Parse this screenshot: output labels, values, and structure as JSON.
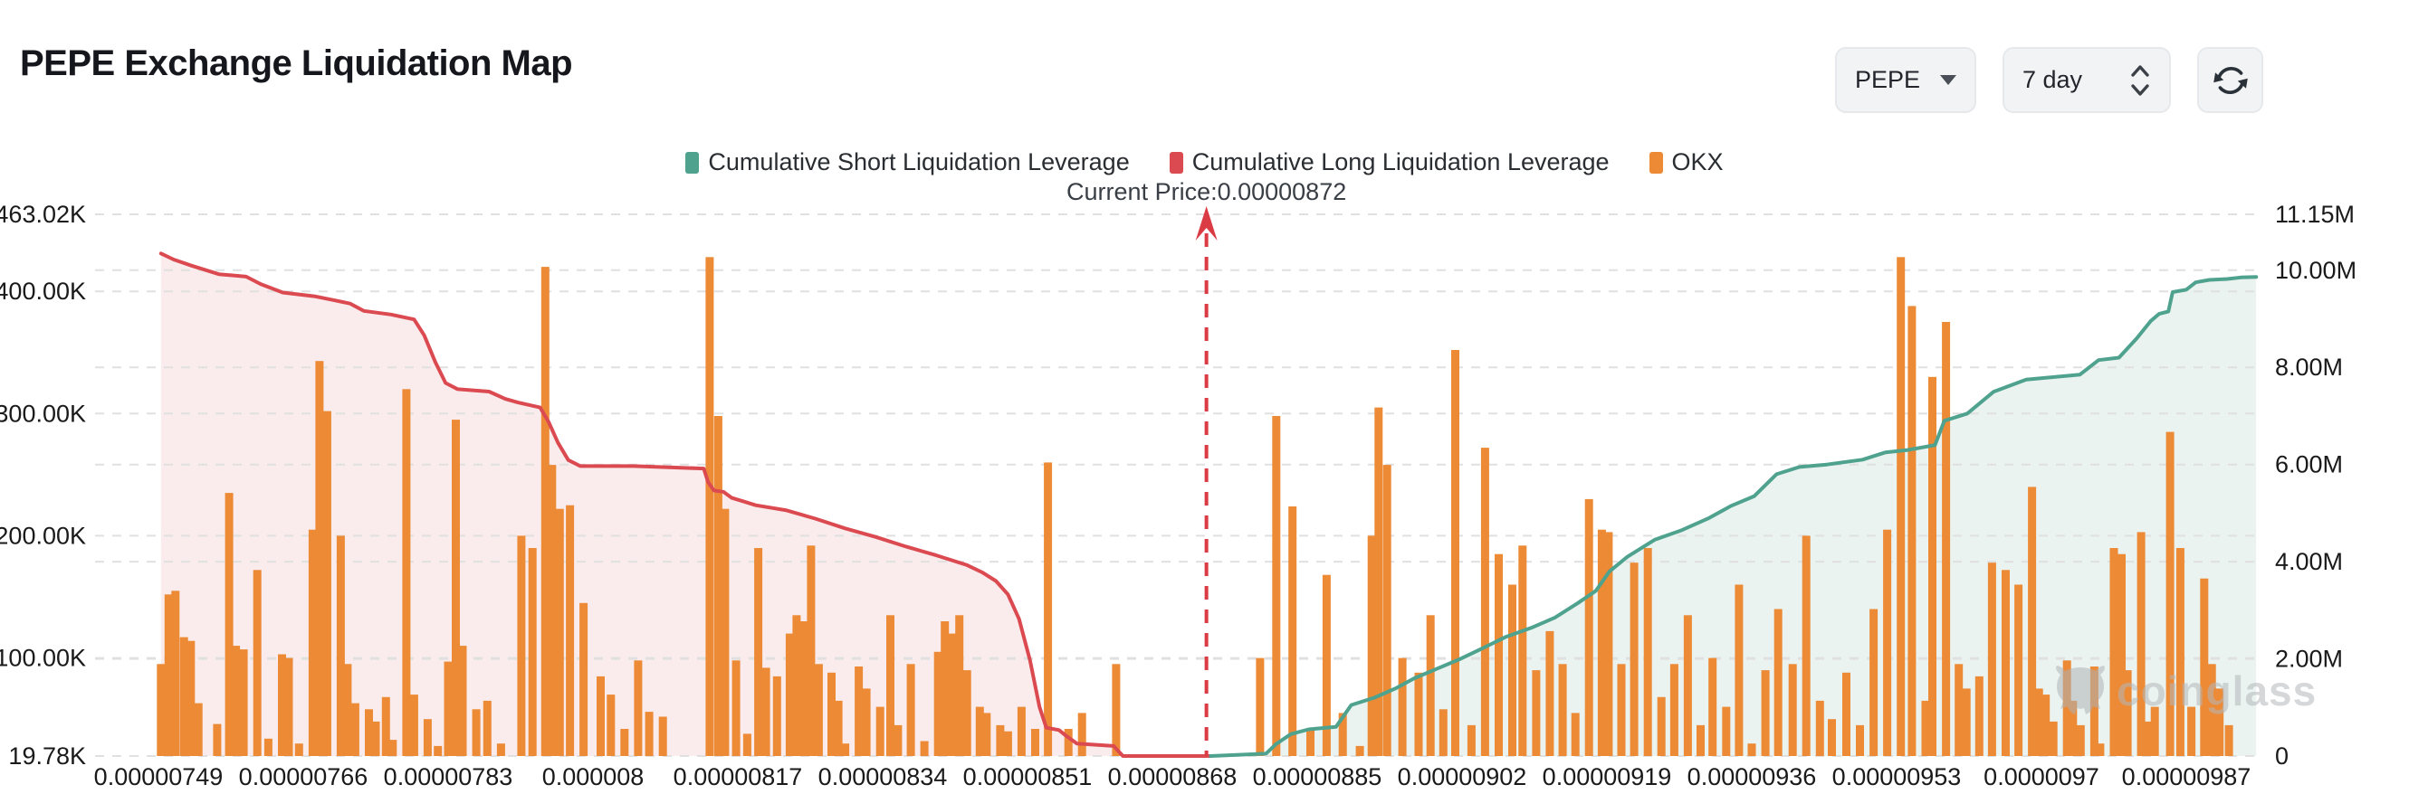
{
  "header": {
    "title": "PEPE Exchange Liquidation Map",
    "coin_label": "PEPE",
    "timeframe_label": "7 day"
  },
  "legend": {
    "items": [
      {
        "label": "Cumulative Short Liquidation Leverage",
        "color": "#4EA28E"
      },
      {
        "label": "Cumulative Long Liquidation Leverage",
        "color": "#DB4A50"
      },
      {
        "label": "OKX",
        "color": "#EC8A35"
      }
    ]
  },
  "watermark": {
    "text": "coinglass"
  },
  "chart_data": {
    "type": "bar",
    "subtype": "liquidation-map: OKX bars (left axis) + cumulative long/short lines (right-area rendering)",
    "title": "PEPE Exchange Liquidation Map",
    "current_price_label": "Current Price:0.00000872",
    "current_price_e8": 872,
    "price_unit": "1e-8 USD (value 749 means 0.00000749)",
    "grid": "dashed horizontal gridlines for both axes",
    "legend_position": "top-center",
    "left_axis": {
      "labels": [
        "463.02K",
        "400.00K",
        "300.00K",
        "200.00K",
        "100.00K",
        "19.78K"
      ],
      "values_k": [
        463.02,
        400,
        300,
        200,
        100,
        19.78
      ],
      "min_k": 19.78,
      "max_k": 463.02
    },
    "right_axis": {
      "labels": [
        "11.15M",
        "10.00M",
        "8.00M",
        "6.00M",
        "4.00M",
        "2.00M",
        "0"
      ],
      "values_m": [
        11.15,
        10,
        8,
        6,
        4,
        2,
        0
      ],
      "min_m": 0,
      "max_m": 11.15
    },
    "x_axis": {
      "tick_labels": [
        "0.00000749",
        "0.00000766",
        "0.00000783",
        "0.000008",
        "0.00000817",
        "0.00000834",
        "0.00000851",
        "0.00000868",
        "0.00000885",
        "0.00000902",
        "0.00000919",
        "0.00000936",
        "0.00000953",
        "0.0000097",
        "0.00000987"
      ],
      "tick_prices_e8": [
        749,
        766,
        783,
        800,
        817,
        834,
        851,
        868,
        885,
        902,
        919,
        936,
        953,
        970,
        987
      ]
    },
    "series": {
      "short_line": {
        "name": "Cumulative Short Liquidation Leverage",
        "color": "#4EA28E",
        "fill": "#EAF3F0",
        "axis": "right",
        "points_price_m": [
          [
            872.5,
            0
          ],
          [
            879,
            0.05
          ],
          [
            880.2,
            0.25
          ],
          [
            881.9,
            0.45
          ],
          [
            884,
            0.55
          ],
          [
            887.2,
            0.6
          ],
          [
            889,
            1.05
          ],
          [
            891.7,
            1.2
          ],
          [
            894.3,
            1.4
          ],
          [
            896.4,
            1.6
          ],
          [
            899.1,
            1.8
          ],
          [
            901.8,
            2
          ],
          [
            904.2,
            2.2
          ],
          [
            907.1,
            2.45
          ],
          [
            910.3,
            2.65
          ],
          [
            912.9,
            2.85
          ],
          [
            915.6,
            3.15
          ],
          [
            917.7,
            3.4
          ],
          [
            919.3,
            3.8
          ],
          [
            921.4,
            4.1
          ],
          [
            924.6,
            4.45
          ],
          [
            927.8,
            4.65
          ],
          [
            931,
            4.9
          ],
          [
            933.6,
            5.15
          ],
          [
            936.3,
            5.35
          ],
          [
            938.9,
            5.8
          ],
          [
            941.6,
            5.95
          ],
          [
            944.8,
            6
          ],
          [
            949,
            6.1
          ],
          [
            951.7,
            6.25
          ],
          [
            954.3,
            6.3
          ],
          [
            957.5,
            6.4
          ],
          [
            958.6,
            6.9
          ],
          [
            961.3,
            7.05
          ],
          [
            964.4,
            7.5
          ],
          [
            968.2,
            7.75
          ],
          [
            974.5,
            7.85
          ],
          [
            976.7,
            8.15
          ],
          [
            979.1,
            8.2
          ],
          [
            981.2,
            8.6
          ],
          [
            982.8,
            8.95
          ],
          [
            983.8,
            9.1
          ],
          [
            984.9,
            9.15
          ],
          [
            985.4,
            9.55
          ],
          [
            987,
            9.6
          ],
          [
            988.1,
            9.75
          ],
          [
            989.7,
            9.8
          ],
          [
            991.8,
            9.82
          ],
          [
            993.4,
            9.85
          ],
          [
            995.2,
            9.86
          ]
        ]
      },
      "long_line": {
        "name": "Cumulative Long Liquidation Leverage",
        "color": "#DB4A50",
        "fill": "#FAECEC",
        "axis": "left",
        "points_price_k": [
          [
            749.3,
            431
          ],
          [
            750.8,
            426
          ],
          [
            752.9,
            421
          ],
          [
            756.1,
            414
          ],
          [
            759.3,
            412
          ],
          [
            761,
            406
          ],
          [
            763.6,
            399
          ],
          [
            767.3,
            396
          ],
          [
            769.4,
            393
          ],
          [
            771.5,
            390
          ],
          [
            773.1,
            384
          ],
          [
            776.3,
            381
          ],
          [
            779,
            377
          ],
          [
            780.2,
            364
          ],
          [
            781.5,
            342
          ],
          [
            782.7,
            325
          ],
          [
            784.1,
            320
          ],
          [
            787.8,
            318
          ],
          [
            789.7,
            312
          ],
          [
            791.2,
            309
          ],
          [
            793.8,
            305
          ],
          [
            794.8,
            293
          ],
          [
            795.9,
            276
          ],
          [
            797.1,
            262
          ],
          [
            798.5,
            257
          ],
          [
            804.8,
            257
          ],
          [
            813,
            255
          ],
          [
            813.5,
            244
          ],
          [
            814.2,
            237
          ],
          [
            815.3,
            236
          ],
          [
            816.3,
            231
          ],
          [
            817.7,
            228
          ],
          [
            819.1,
            225
          ],
          [
            822.6,
            221
          ],
          [
            826.1,
            214
          ],
          [
            829.6,
            206
          ],
          [
            833.2,
            199
          ],
          [
            836.8,
            191
          ],
          [
            840.3,
            184
          ],
          [
            843.9,
            176
          ],
          [
            845.7,
            170
          ],
          [
            847.3,
            163
          ],
          [
            848.7,
            152
          ],
          [
            850,
            132
          ],
          [
            851.3,
            98
          ],
          [
            852.4,
            60
          ],
          [
            853.2,
            43
          ],
          [
            854.7,
            41
          ],
          [
            855.4,
            37
          ],
          [
            856.8,
            30
          ],
          [
            861.1,
            28
          ],
          [
            862.2,
            19.78
          ],
          [
            872.5,
            19.78
          ]
        ]
      },
      "okx_bars": {
        "name": "OKX",
        "color": "#EC8A35",
        "axis": "left",
        "bars_price_k": [
          [
            749.3,
            95
          ],
          [
            750.2,
            152
          ],
          [
            751,
            155
          ],
          [
            752,
            117
          ],
          [
            752.8,
            114
          ],
          [
            753.7,
            63
          ],
          [
            755.9,
            46
          ],
          [
            757.3,
            235
          ],
          [
            758.1,
            110
          ],
          [
            759,
            107
          ],
          [
            760.6,
            172
          ],
          [
            761.9,
            34
          ],
          [
            763.5,
            103
          ],
          [
            764.3,
            100
          ],
          [
            765.5,
            30
          ],
          [
            767.1,
            205
          ],
          [
            767.9,
            343
          ],
          [
            768.8,
            302
          ],
          [
            770.4,
            200
          ],
          [
            771.2,
            95
          ],
          [
            772.1,
            63
          ],
          [
            773.7,
            58
          ],
          [
            774.5,
            48
          ],
          [
            775.7,
            68
          ],
          [
            776.5,
            33
          ],
          [
            778.1,
            320
          ],
          [
            779,
            70
          ],
          [
            780.6,
            50
          ],
          [
            781.8,
            28
          ],
          [
            783,
            97
          ],
          [
            783.9,
            295
          ],
          [
            784.7,
            110
          ],
          [
            786.3,
            58
          ],
          [
            787.6,
            65
          ],
          [
            789.2,
            30
          ],
          [
            791.6,
            200
          ],
          [
            792.9,
            190
          ],
          [
            794.4,
            420
          ],
          [
            795.2,
            258
          ],
          [
            796.1,
            222
          ],
          [
            797.3,
            225
          ],
          [
            798.9,
            145
          ],
          [
            800.9,
            85
          ],
          [
            802.1,
            70
          ],
          [
            803.7,
            42
          ],
          [
            805.3,
            98
          ],
          [
            806.6,
            56
          ],
          [
            808.2,
            52
          ],
          [
            813.7,
            428
          ],
          [
            814.7,
            298
          ],
          [
            815.5,
            222
          ],
          [
            816.8,
            98
          ],
          [
            818.1,
            38
          ],
          [
            819.4,
            190
          ],
          [
            820.3,
            92
          ],
          [
            821.6,
            85
          ],
          [
            823.1,
            120
          ],
          [
            823.9,
            135
          ],
          [
            824.8,
            130
          ],
          [
            825.6,
            192
          ],
          [
            826.5,
            95
          ],
          [
            828,
            88
          ],
          [
            828.8,
            65
          ],
          [
            829.6,
            30
          ],
          [
            831.2,
            93
          ],
          [
            832.1,
            75
          ],
          [
            833.7,
            60
          ],
          [
            834.9,
            135
          ],
          [
            835.8,
            45
          ],
          [
            837.3,
            95
          ],
          [
            838.9,
            32
          ],
          [
            840.5,
            105
          ],
          [
            841.3,
            130
          ],
          [
            842.2,
            120
          ],
          [
            843,
            135
          ],
          [
            843.9,
            90
          ],
          [
            845.4,
            60
          ],
          [
            846.2,
            55
          ],
          [
            847.8,
            45
          ],
          [
            848.7,
            40
          ],
          [
            850.3,
            60
          ],
          [
            851.9,
            42
          ],
          [
            853.4,
            260
          ],
          [
            855.8,
            42
          ],
          [
            857.4,
            55
          ],
          [
            861.4,
            95
          ],
          [
            878.3,
            100
          ],
          [
            880.2,
            298
          ],
          [
            882.1,
            224
          ],
          [
            884.2,
            42
          ],
          [
            886.1,
            168
          ],
          [
            888,
            55
          ],
          [
            890,
            28
          ],
          [
            891.4,
            200
          ],
          [
            892.2,
            305
          ],
          [
            893.2,
            258
          ],
          [
            895,
            100
          ],
          [
            896.9,
            88
          ],
          [
            898.3,
            135
          ],
          [
            899.8,
            58
          ],
          [
            901.2,
            352
          ],
          [
            903.1,
            45
          ],
          [
            904.7,
            272
          ],
          [
            906.3,
            185
          ],
          [
            907.9,
            160
          ],
          [
            909.1,
            192
          ],
          [
            910.7,
            90
          ],
          [
            912.3,
            122
          ],
          [
            913.8,
            95
          ],
          [
            915.3,
            55
          ],
          [
            916.9,
            230
          ],
          [
            918.4,
            205
          ],
          [
            919.2,
            203
          ],
          [
            920.7,
            95
          ],
          [
            922.2,
            178
          ],
          [
            923.8,
            190
          ],
          [
            925.4,
            68
          ],
          [
            926.9,
            95
          ],
          [
            928.5,
            135
          ],
          [
            930,
            45
          ],
          [
            931.4,
            100
          ],
          [
            933,
            60
          ],
          [
            934.5,
            160
          ],
          [
            936,
            30
          ],
          [
            937.6,
            90
          ],
          [
            939.1,
            140
          ],
          [
            940.8,
            95
          ],
          [
            942.4,
            200
          ],
          [
            944,
            65
          ],
          [
            945.4,
            50
          ],
          [
            947.1,
            88
          ],
          [
            948.7,
            45
          ],
          [
            950.3,
            140
          ],
          [
            951.9,
            205
          ],
          [
            953.5,
            428
          ],
          [
            954.8,
            388
          ],
          [
            956.4,
            65
          ],
          [
            957.2,
            330
          ],
          [
            958.8,
            375
          ],
          [
            960.3,
            95
          ],
          [
            961.2,
            75
          ],
          [
            962.7,
            85
          ],
          [
            964.2,
            178
          ],
          [
            965.8,
            172
          ],
          [
            967.3,
            160
          ],
          [
            968.9,
            240
          ],
          [
            969.7,
            75
          ],
          [
            970.5,
            70
          ],
          [
            971.4,
            48
          ],
          [
            973,
            98
          ],
          [
            973.7,
            65
          ],
          [
            974.6,
            45
          ],
          [
            976.2,
            93
          ],
          [
            976.9,
            30
          ],
          [
            978.5,
            190
          ],
          [
            979.4,
            185
          ],
          [
            980.1,
            90
          ],
          [
            981.7,
            203
          ],
          [
            982.4,
            48
          ],
          [
            983.3,
            60
          ],
          [
            985.1,
            285
          ],
          [
            986.3,
            190
          ],
          [
            987.6,
            60
          ],
          [
            989.1,
            165
          ],
          [
            990,
            95
          ],
          [
            990.9,
            75
          ],
          [
            992,
            45
          ]
        ]
      }
    },
    "colors": {
      "gridline": "#E0E0E0",
      "current_price_line": "#DB3B44",
      "axis_text": "#1a1a1a"
    }
  }
}
